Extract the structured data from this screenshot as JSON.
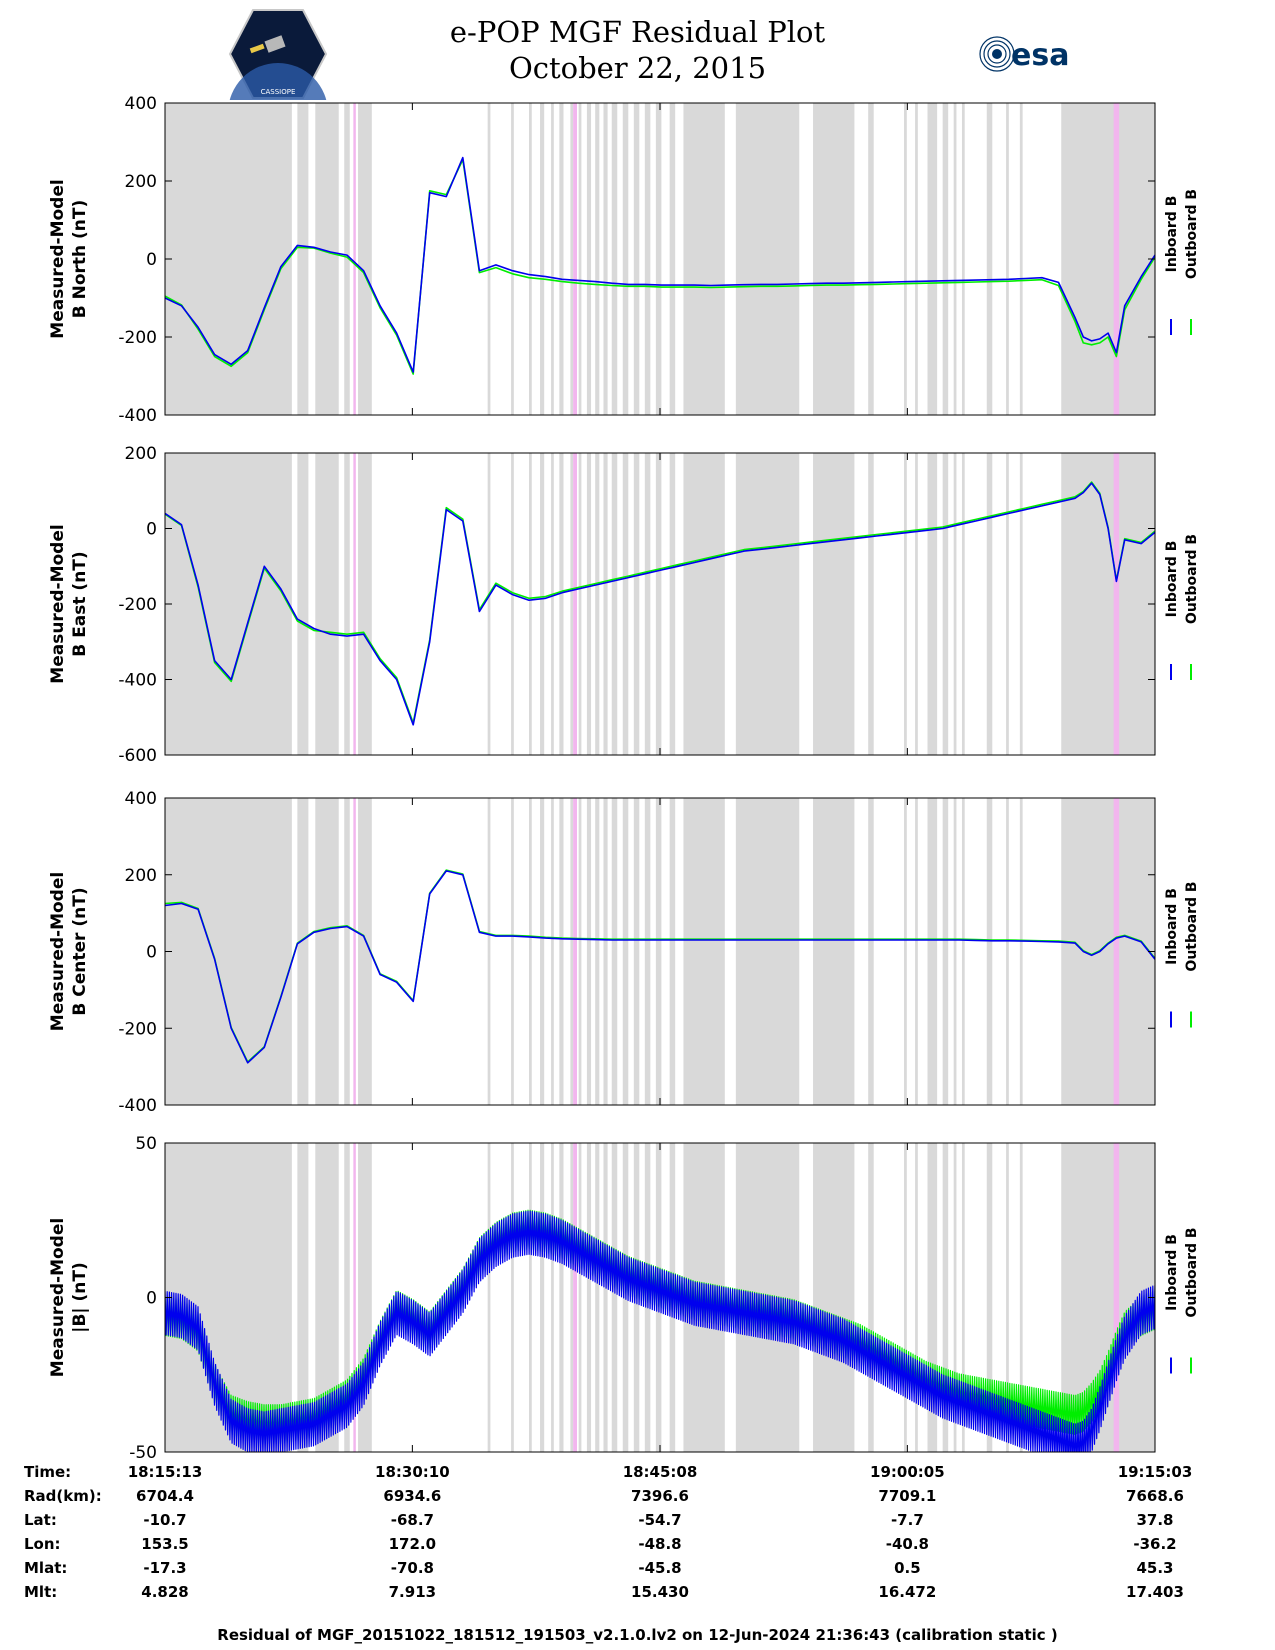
{
  "header": {
    "title_line1": "e-POP MGF Residual Plot",
    "title_line2": "October 22, 2015",
    "esa_logo_text": "esa",
    "cassiope_logo_text": "CASSIOPE"
  },
  "colors": {
    "inboard": "#0000ee",
    "outboard": "#00ee00",
    "gray_band": "#d9d9d9",
    "pink_band": "#f2b6ee"
  },
  "legend": {
    "inboard": "Inboard B",
    "outboard": "Outboard B"
  },
  "chart_data": [
    {
      "type": "line",
      "id": "north",
      "ylabel_line1": "Measured-Model",
      "ylabel_line2": "B North (nT)",
      "ylim": [
        -400,
        400
      ],
      "yticks": [
        -400,
        -200,
        0,
        200,
        400
      ],
      "xlim": [
        0,
        3590
      ],
      "x": [
        0,
        60,
        120,
        180,
        240,
        300,
        360,
        420,
        480,
        540,
        600,
        660,
        720,
        780,
        840,
        900,
        960,
        1020,
        1080,
        1140,
        1200,
        1260,
        1320,
        1380,
        1440,
        1500,
        1560,
        1620,
        1680,
        1740,
        1800,
        1860,
        1920,
        1980,
        2040,
        2100,
        2160,
        2220,
        2280,
        2340,
        2400,
        2460,
        2520,
        2580,
        2640,
        2700,
        2760,
        2820,
        2880,
        2940,
        3000,
        3060,
        3120,
        3180,
        3240,
        3300,
        3330,
        3360,
        3390,
        3420,
        3450,
        3480,
        3540,
        3590
      ],
      "series": [
        {
          "name": "Inboard B",
          "values": [
            -100,
            -120,
            -175,
            -245,
            -270,
            -235,
            -125,
            -20,
            35,
            30,
            18,
            10,
            -30,
            -120,
            -190,
            -290,
            170,
            160,
            260,
            -30,
            -15,
            -30,
            -40,
            -45,
            -52,
            -55,
            -58,
            -62,
            -65,
            -65,
            -67,
            -67,
            -67,
            -68,
            -67,
            -66,
            -65,
            -65,
            -64,
            -63,
            -62,
            -62,
            -61,
            -60,
            -59,
            -58,
            -57,
            -56,
            -55,
            -54,
            -53,
            -52,
            -50,
            -48,
            -60,
            -150,
            -200,
            -210,
            -205,
            -190,
            -240,
            -120,
            -45,
            10
          ]
        },
        {
          "name": "Outboard B",
          "values": [
            -95,
            -118,
            -180,
            -250,
            -275,
            -240,
            -130,
            -25,
            30,
            28,
            15,
            5,
            -35,
            -125,
            -195,
            -295,
            175,
            165,
            255,
            -35,
            -22,
            -38,
            -48,
            -52,
            -58,
            -62,
            -65,
            -68,
            -70,
            -70,
            -72,
            -72,
            -72,
            -73,
            -72,
            -71,
            -70,
            -70,
            -69,
            -68,
            -67,
            -67,
            -66,
            -65,
            -64,
            -63,
            -62,
            -61,
            -60,
            -59,
            -58,
            -57,
            -55,
            -53,
            -68,
            -160,
            -215,
            -220,
            -215,
            -200,
            -250,
            -130,
            -52,
            5
          ]
        }
      ]
    },
    {
      "type": "line",
      "id": "east",
      "ylabel_line1": "Measured-Model",
      "ylabel_line2": "B East (nT)",
      "ylim": [
        -600,
        200
      ],
      "yticks": [
        -600,
        -400,
        -200,
        0,
        200
      ],
      "xlim": [
        0,
        3590
      ],
      "x": [
        0,
        60,
        120,
        180,
        240,
        300,
        360,
        420,
        480,
        540,
        600,
        660,
        720,
        780,
        840,
        900,
        960,
        1020,
        1080,
        1140,
        1200,
        1260,
        1320,
        1380,
        1440,
        1500,
        1560,
        1620,
        1680,
        1740,
        1800,
        1860,
        1920,
        1980,
        2040,
        2100,
        2160,
        2220,
        2280,
        2340,
        2400,
        2460,
        2520,
        2580,
        2640,
        2700,
        2760,
        2820,
        2880,
        2940,
        3000,
        3060,
        3120,
        3180,
        3240,
        3300,
        3330,
        3360,
        3390,
        3420,
        3450,
        3480,
        3540,
        3590
      ],
      "series": [
        {
          "name": "Inboard B",
          "values": [
            40,
            10,
            -150,
            -350,
            -400,
            -250,
            -100,
            -160,
            -240,
            -265,
            -280,
            -285,
            -280,
            -350,
            -400,
            -520,
            -300,
            50,
            20,
            -220,
            -150,
            -175,
            -190,
            -185,
            -170,
            -160,
            -150,
            -140,
            -130,
            -120,
            -110,
            -100,
            -90,
            -80,
            -70,
            -60,
            -55,
            -50,
            -45,
            -40,
            -35,
            -30,
            -25,
            -20,
            -15,
            -10,
            -5,
            0,
            10,
            20,
            30,
            40,
            50,
            60,
            70,
            80,
            95,
            120,
            90,
            0,
            -140,
            -30,
            -40,
            -10
          ]
        },
        {
          "name": "Outboard B",
          "values": [
            38,
            8,
            -155,
            -355,
            -405,
            -255,
            -105,
            -165,
            -245,
            -270,
            -275,
            -280,
            -275,
            -345,
            -395,
            -515,
            -295,
            55,
            25,
            -215,
            -145,
            -170,
            -185,
            -180,
            -166,
            -156,
            -146,
            -136,
            -126,
            -116,
            -106,
            -96,
            -86,
            -76,
            -66,
            -56,
            -51,
            -46,
            -41,
            -36,
            -31,
            -26,
            -21,
            -16,
            -11,
            -6,
            -1,
            4,
            14,
            24,
            34,
            44,
            54,
            64,
            74,
            84,
            98,
            123,
            93,
            3,
            -137,
            -27,
            -37,
            -7
          ]
        }
      ]
    },
    {
      "type": "line",
      "id": "center",
      "ylabel_line1": "Measured-Model",
      "ylabel_line2": "B Center (nT)",
      "ylim": [
        -400,
        400
      ],
      "yticks": [
        -400,
        -200,
        0,
        200,
        400
      ],
      "xlim": [
        0,
        3590
      ],
      "x": [
        0,
        60,
        120,
        180,
        240,
        300,
        360,
        420,
        480,
        540,
        600,
        660,
        720,
        780,
        840,
        900,
        960,
        1020,
        1080,
        1140,
        1200,
        1260,
        1320,
        1380,
        1440,
        1500,
        1560,
        1620,
        1680,
        1740,
        1800,
        1860,
        1920,
        1980,
        2040,
        2100,
        2160,
        2220,
        2280,
        2340,
        2400,
        2460,
        2520,
        2580,
        2640,
        2700,
        2760,
        2820,
        2880,
        2940,
        3000,
        3060,
        3120,
        3180,
        3240,
        3300,
        3330,
        3360,
        3390,
        3420,
        3450,
        3480,
        3540,
        3590
      ],
      "series": [
        {
          "name": "Inboard B",
          "values": [
            120,
            125,
            110,
            -20,
            -200,
            -290,
            -250,
            -120,
            20,
            50,
            60,
            65,
            40,
            -60,
            -80,
            -130,
            150,
            210,
            200,
            50,
            40,
            40,
            38,
            35,
            33,
            32,
            31,
            30,
            30,
            30,
            30,
            30,
            30,
            30,
            30,
            30,
            30,
            30,
            30,
            30,
            30,
            30,
            30,
            30,
            30,
            30,
            30,
            30,
            30,
            29,
            28,
            28,
            27,
            26,
            25,
            22,
            0,
            -10,
            0,
            20,
            35,
            40,
            25,
            -20
          ]
        },
        {
          "name": "Outboard B",
          "values": [
            125,
            128,
            112,
            -18,
            -198,
            -288,
            -248,
            -118,
            22,
            52,
            62,
            67,
            42,
            -58,
            -78,
            -128,
            152,
            212,
            202,
            52,
            42,
            42,
            40,
            37,
            35,
            34,
            33,
            32,
            32,
            32,
            32,
            32,
            32,
            32,
            32,
            32,
            32,
            32,
            32,
            32,
            32,
            32,
            32,
            32,
            32,
            32,
            32,
            32,
            32,
            31,
            30,
            30,
            29,
            28,
            27,
            24,
            2,
            -8,
            2,
            22,
            37,
            42,
            27,
            -18
          ]
        }
      ]
    },
    {
      "type": "line",
      "id": "total",
      "ylabel_line1": "Measured-Model",
      "ylabel_line2": "|B| (nT)",
      "ylim": [
        -50,
        50
      ],
      "yticks": [
        -50,
        0,
        50
      ],
      "xlim": [
        0,
        3590
      ],
      "x": [
        0,
        60,
        120,
        180,
        240,
        300,
        360,
        420,
        480,
        540,
        600,
        660,
        720,
        780,
        840,
        900,
        960,
        1020,
        1080,
        1140,
        1200,
        1260,
        1320,
        1380,
        1440,
        1500,
        1560,
        1620,
        1680,
        1740,
        1800,
        1860,
        1920,
        1980,
        2040,
        2100,
        2160,
        2220,
        2280,
        2340,
        2400,
        2460,
        2520,
        2580,
        2640,
        2700,
        2760,
        2820,
        2880,
        2940,
        3000,
        3060,
        3120,
        3180,
        3240,
        3300,
        3330,
        3360,
        3390,
        3420,
        3450,
        3480,
        3540,
        3590
      ],
      "series": [
        {
          "name": "Inboard B",
          "values": [
            -5,
            -6,
            -10,
            -28,
            -40,
            -43,
            -44,
            -43,
            -42,
            -41,
            -38,
            -35,
            -28,
            -15,
            -5,
            -8,
            -12,
            -5,
            2,
            12,
            17,
            20,
            21,
            20,
            18,
            15,
            12,
            9,
            6,
            4,
            2,
            0,
            -2,
            -3,
            -4,
            -5,
            -6,
            -7,
            -8,
            -10,
            -12,
            -14,
            -17,
            -20,
            -23,
            -26,
            -29,
            -32,
            -34,
            -36,
            -38,
            -40,
            -42,
            -44,
            -46,
            -48,
            -47,
            -43,
            -36,
            -28,
            -20,
            -13,
            -5,
            -3
          ]
        },
        {
          "name": "Outboard B",
          "values": [
            -6,
            -7,
            -11,
            -28,
            -38,
            -40,
            -41,
            -41,
            -40,
            -39,
            -36,
            -33,
            -26,
            -14,
            -4,
            -7,
            -11,
            -4,
            3,
            13,
            18,
            21,
            22,
            21,
            19,
            16,
            13,
            10,
            7,
            5,
            3,
            1,
            -1,
            -2,
            -3,
            -4,
            -5,
            -6,
            -7,
            -9,
            -11,
            -13,
            -15,
            -18,
            -21,
            -24,
            -27,
            -29,
            -31,
            -32,
            -33,
            -34,
            -35,
            -36,
            -37,
            -38,
            -37,
            -34,
            -30,
            -24,
            -17,
            -11,
            -6,
            -4
          ]
        }
      ],
      "amplitude": 7
    }
  ],
  "shading": {
    "gray_bands": [
      [
        0,
        460
      ],
      [
        480,
        520
      ],
      [
        545,
        630
      ],
      [
        650,
        670
      ],
      [
        700,
        750
      ],
      [
        1170,
        1180
      ],
      [
        1255,
        1265
      ],
      [
        1320,
        1330
      ],
      [
        1360,
        1375
      ],
      [
        1400,
        1410
      ],
      [
        1430,
        1445
      ],
      [
        1470,
        1480
      ],
      [
        1500,
        1510
      ],
      [
        1530,
        1545
      ],
      [
        1560,
        1575
      ],
      [
        1590,
        1605
      ],
      [
        1620,
        1640
      ],
      [
        1660,
        1680
      ],
      [
        1700,
        1720
      ],
      [
        1740,
        1760
      ],
      [
        1780,
        1800
      ],
      [
        1830,
        1850
      ],
      [
        1880,
        2030
      ],
      [
        2070,
        2300
      ],
      [
        2350,
        2500
      ],
      [
        2550,
        2570
      ],
      [
        2680,
        2690
      ],
      [
        2720,
        2730
      ],
      [
        2765,
        2800
      ],
      [
        2820,
        2840
      ],
      [
        2860,
        2870
      ],
      [
        2890,
        2900
      ],
      [
        2980,
        3000
      ],
      [
        3050,
        3060
      ],
      [
        3100,
        3110
      ],
      [
        3250,
        3590
      ]
    ],
    "pink_bands": [
      [
        683,
        692
      ],
      [
        1480,
        1494
      ],
      [
        3440,
        3460
      ]
    ]
  },
  "x_ticks": [
    {
      "pos": 0
    },
    {
      "pos": 897
    },
    {
      "pos": 1795
    },
    {
      "pos": 2692
    },
    {
      "pos": 3590
    }
  ],
  "ephemeris": {
    "labels": [
      "Time:",
      "Rad(km):",
      "Lat:",
      "Lon:",
      "Mlat:",
      "Mlt:"
    ],
    "columns": [
      [
        "18:15:13",
        "6704.4",
        "-10.7",
        "153.5",
        "-17.3",
        "4.828"
      ],
      [
        "18:30:10",
        "6934.6",
        "-68.7",
        "172.0",
        "-70.8",
        "7.913"
      ],
      [
        "18:45:08",
        "7396.6",
        "-54.7",
        "-48.8",
        "-45.8",
        "15.430"
      ],
      [
        "19:00:05",
        "7709.1",
        "-7.7",
        "-40.8",
        "0.5",
        "16.472"
      ],
      [
        "19:15:03",
        "7668.6",
        "37.8",
        "-36.2",
        "45.3",
        "17.403"
      ]
    ]
  },
  "footer": "Residual of MGF_20151022_181512_191503_v2.1.0.lv2 on 12-Jun-2024 21:36:43 (calibration static )"
}
